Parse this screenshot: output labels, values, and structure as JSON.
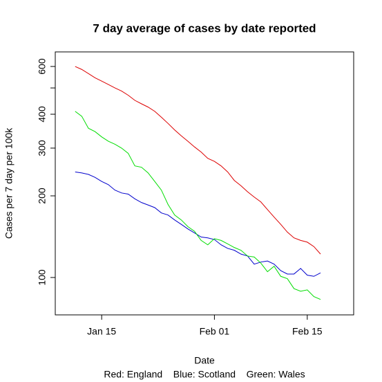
{
  "chart_data": {
    "type": "line",
    "title": "7 day average of cases by date reported",
    "x_label": "Date",
    "y_label": "Cases per 7 day per 100k",
    "note": "Red: England    Blue: Scotland    Green: Wales",
    "x": [
      "Jan 11",
      "Jan 12",
      "Jan 13",
      "Jan 14",
      "Jan 15",
      "Jan 16",
      "Jan 17",
      "Jan 18",
      "Jan 19",
      "Jan 20",
      "Jan 21",
      "Jan 22",
      "Jan 23",
      "Jan 24",
      "Jan 25",
      "Jan 26",
      "Jan 27",
      "Jan 28",
      "Jan 29",
      "Jan 30",
      "Jan 31",
      "Feb 01",
      "Feb 02",
      "Feb 03",
      "Feb 04",
      "Feb 05",
      "Feb 06",
      "Feb 07",
      "Feb 08",
      "Feb 09",
      "Feb 10",
      "Feb 11",
      "Feb 12",
      "Feb 13",
      "Feb 14",
      "Feb 15",
      "Feb 16",
      "Feb 17"
    ],
    "series": [
      {
        "name": "England",
        "color": "#dd0000",
        "values": [
          600,
          585,
          565,
          545,
          530,
          515,
          500,
          487,
          470,
          450,
          437,
          425,
          410,
          390,
          370,
          350,
          333,
          318,
          303,
          290,
          275,
          268,
          258,
          245,
          228,
          218,
          207,
          198,
          190,
          178,
          167,
          157,
          147,
          140,
          137,
          135,
          130,
          122
        ]
      },
      {
        "name": "Scotland",
        "color": "#0000cc",
        "values": [
          245,
          243,
          240,
          234,
          226,
          220,
          210,
          205,
          203,
          195,
          189,
          185,
          181,
          173,
          170,
          163,
          157,
          151,
          146,
          141,
          140,
          138,
          132,
          128,
          126,
          122,
          120,
          112,
          114,
          115,
          112,
          106,
          103,
          103,
          108,
          102,
          101,
          104
        ]
      },
      {
        "name": "Wales",
        "color": "#00dd00",
        "values": [
          410,
          393,
          355,
          345,
          330,
          318,
          310,
          300,
          287,
          258,
          255,
          243,
          226,
          210,
          186,
          170,
          163,
          154,
          148,
          137,
          132,
          139,
          137,
          133,
          129,
          126,
          120,
          119,
          113,
          105,
          110,
          101,
          99,
          91,
          89,
          90,
          85,
          83
        ]
      }
    ],
    "xlim": [
      "Jan 08",
      "Feb 22"
    ],
    "xticks": [
      "Jan 15",
      "Feb 01",
      "Feb 15"
    ],
    "ylim": [
      72.8,
      679
    ],
    "yticks": [
      100,
      200,
      300,
      400,
      {
        "value": 500,
        "label": null
      },
      600
    ],
    "log_y": true,
    "grid": false
  }
}
